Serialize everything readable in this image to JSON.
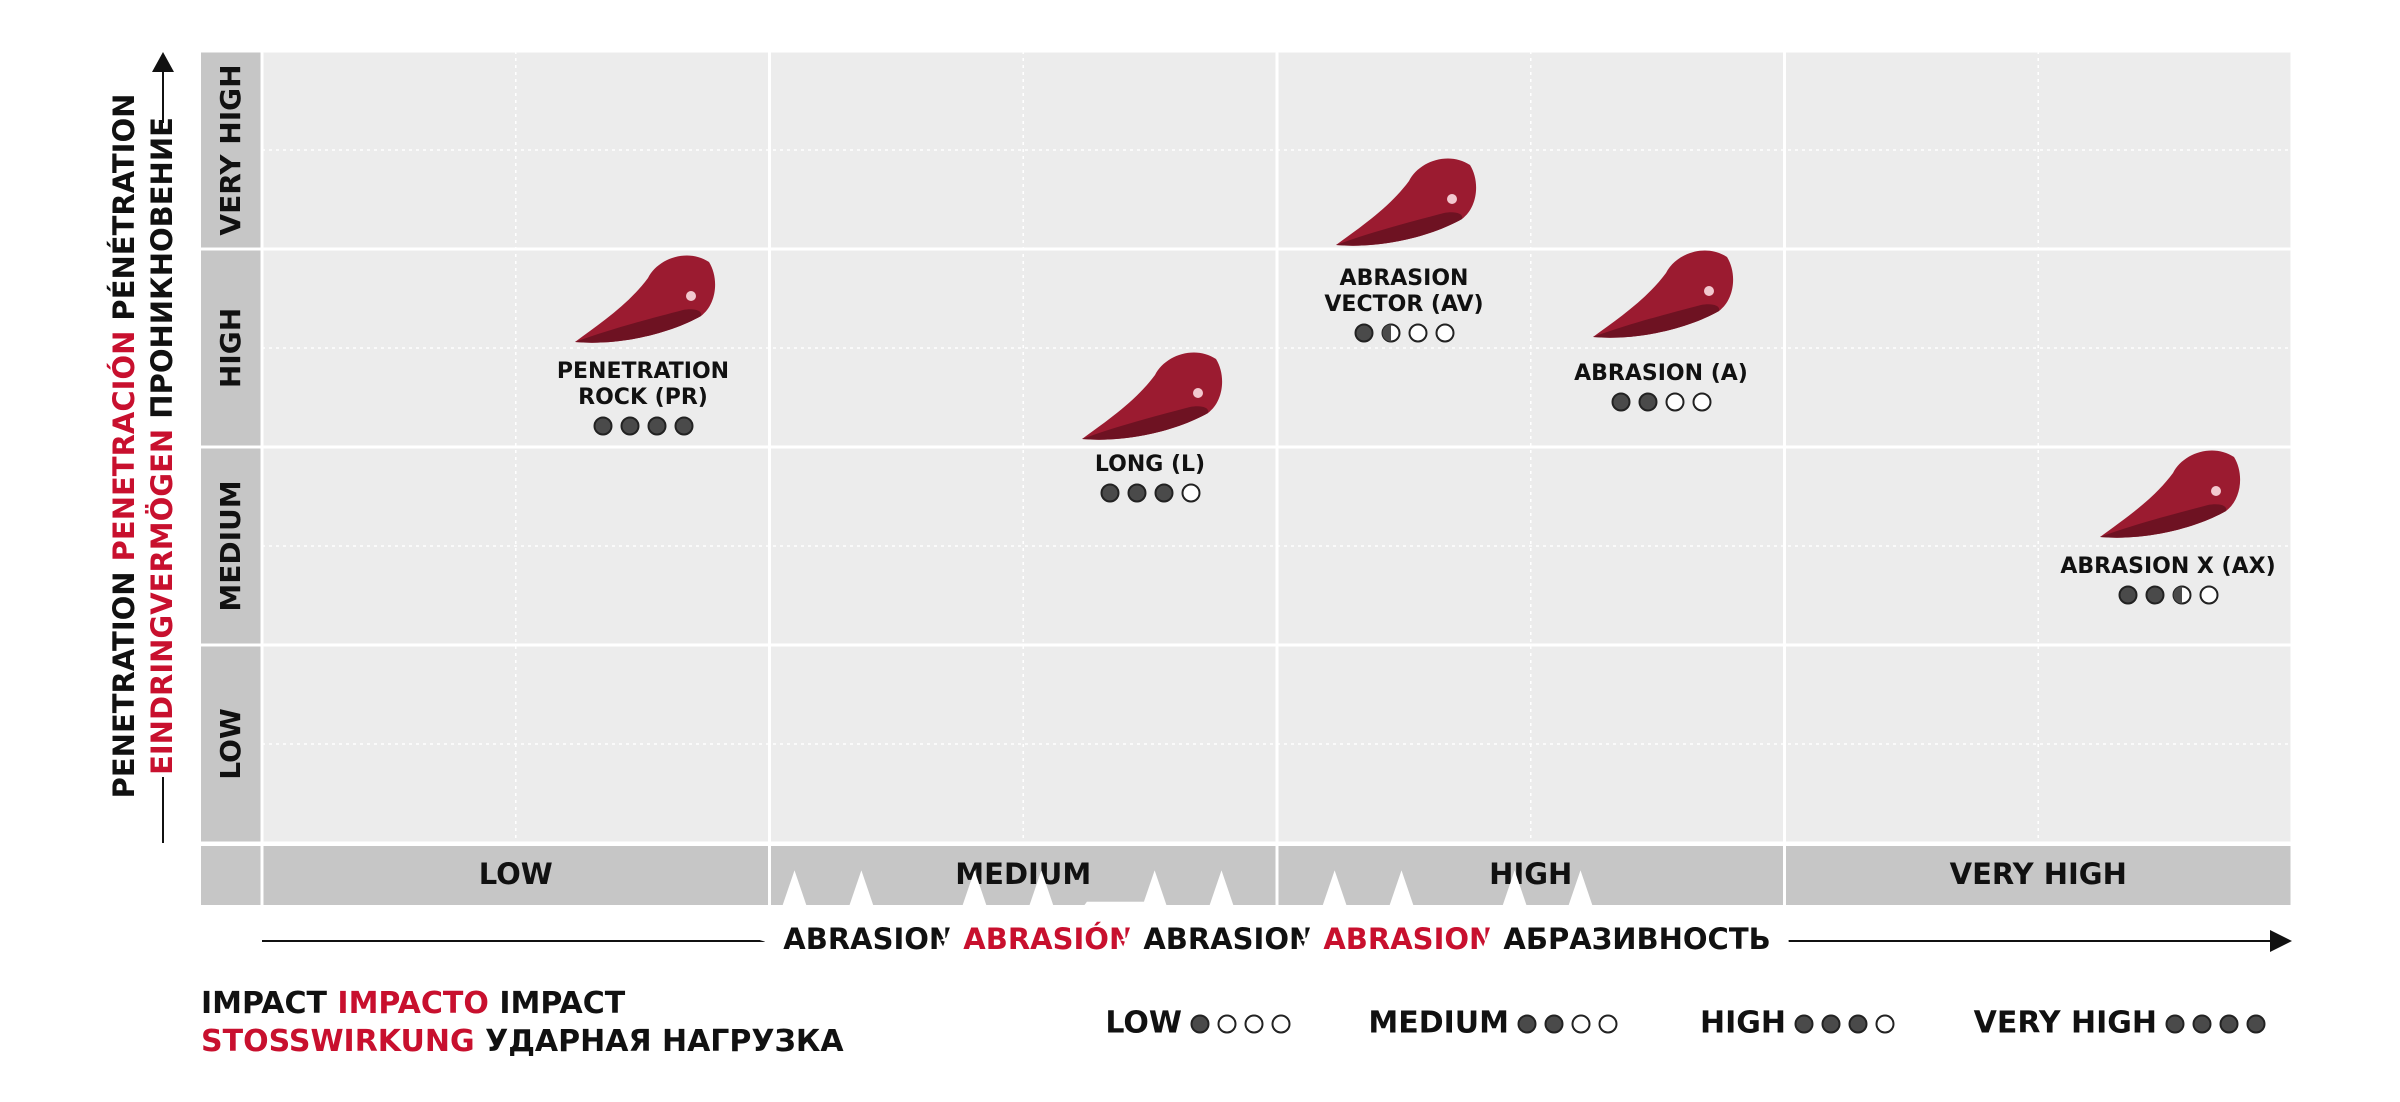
{
  "y_axis_title": [
    [
      "PENETRATION",
      "PENETRACIÓN",
      "PÉNÉTRATION"
    ],
    [
      "EINDRINGVERMÖGEN",
      "ПРОНИКНОВЕНИЕ"
    ]
  ],
  "x_axis_title": [
    "ABRASION",
    "ABRASIÓN",
    "ABRASION",
    "ABRASION",
    "АБРАЗИВНОСТЬ"
  ],
  "y_levels": [
    "LOW",
    "MEDIUM",
    "HIGH",
    "VERY HIGH"
  ],
  "x_levels": [
    "LOW",
    "MEDIUM",
    "HIGH",
    "VERY HIGH"
  ],
  "accent_color": "#c8102e",
  "tooth_color": "#9b1b30",
  "items": [
    {
      "label": [
        "PENETRATION",
        "ROCK (PR)"
      ],
      "impact": 4
    },
    {
      "label": [
        "LONG (L)"
      ],
      "impact": 3
    },
    {
      "label": [
        "ABRASION",
        "VECTOR (AV)"
      ],
      "impact": 1.5
    },
    {
      "label": [
        "ABRASION (A)"
      ],
      "impact": 2
    },
    {
      "label": [
        "ABRASION X (AX)"
      ],
      "impact": 2.5
    }
  ],
  "impact_title": [
    [
      "IMPACT",
      "IMPACTO",
      "IMPACT"
    ],
    [
      "STOSSWIRKUNG",
      "УДАРНАЯ НАГРУЗКА"
    ]
  ],
  "impact_legend": [
    {
      "label": "LOW",
      "impact": 1
    },
    {
      "label": "MEDIUM",
      "impact": 2
    },
    {
      "label": "HIGH",
      "impact": 3
    },
    {
      "label": "VERY HIGH",
      "impact": 4
    }
  ]
}
